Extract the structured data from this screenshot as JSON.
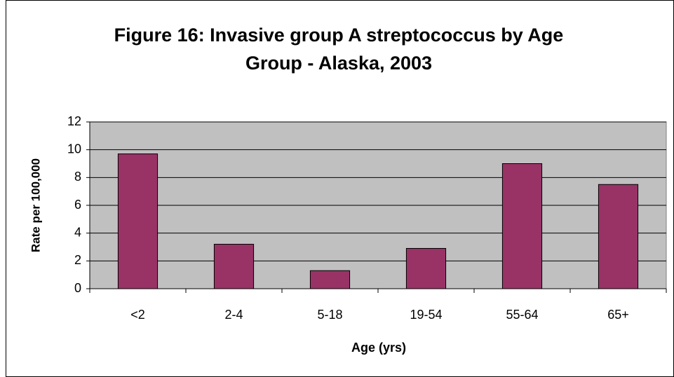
{
  "chart_data": {
    "type": "bar",
    "title": "Figure 16: Invasive group A streptococcus by Age Group - Alaska, 2003",
    "xlabel": "Age (yrs)",
    "ylabel": "Rate per 100,000",
    "categories": [
      "<2",
      "2-4",
      "5-18",
      "19-54",
      "55-64",
      "65+"
    ],
    "values": [
      9.7,
      3.2,
      1.3,
      2.9,
      9.0,
      7.5
    ],
    "color": "#993366",
    "ylim": [
      0,
      12
    ],
    "yticks": [
      0,
      2,
      4,
      6,
      8,
      10,
      12
    ],
    "grid": true
  }
}
